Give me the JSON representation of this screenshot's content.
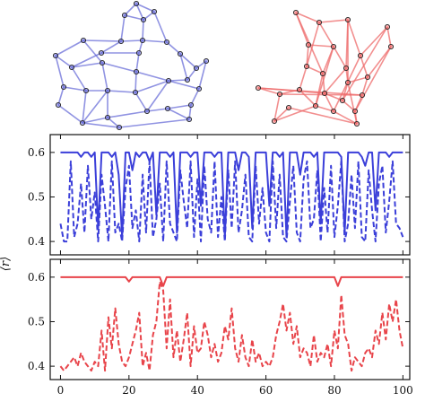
{
  "colors": {
    "blue": "#3b3fd9",
    "blue_fill": "#6b6fd8",
    "red": "#e8444a",
    "red_fill": "#ee6a6a",
    "frame": "#111111"
  },
  "networks": {
    "blue_nodes": [
      [
        152,
        4
      ],
      [
        139,
        17
      ],
      [
        172,
        13
      ],
      [
        160,
        22
      ],
      [
        135,
        46
      ],
      [
        159,
        45
      ],
      [
        186,
        47
      ],
      [
        93,
        45
      ],
      [
        113,
        59
      ],
      [
        155,
        59
      ],
      [
        201,
        60
      ],
      [
        62,
        62
      ],
      [
        80,
        75
      ],
      [
        114,
        70
      ],
      [
        152,
        80
      ],
      [
        209,
        89
      ],
      [
        219,
        76
      ],
      [
        230,
        68
      ],
      [
        71,
        97
      ],
      [
        96,
        101
      ],
      [
        120,
        101
      ],
      [
        151,
        103
      ],
      [
        188,
        90
      ],
      [
        222,
        99
      ],
      [
        213,
        117
      ],
      [
        65,
        117
      ],
      [
        92,
        137
      ],
      [
        120,
        131
      ],
      [
        164,
        124
      ],
      [
        187,
        121
      ],
      [
        211,
        133
      ],
      [
        133,
        142
      ]
    ],
    "blue_edges": [
      [
        0,
        1
      ],
      [
        0,
        2
      ],
      [
        0,
        3
      ],
      [
        1,
        3
      ],
      [
        1,
        4
      ],
      [
        2,
        3
      ],
      [
        2,
        6
      ],
      [
        3,
        5
      ],
      [
        4,
        5
      ],
      [
        4,
        7
      ],
      [
        4,
        8
      ],
      [
        5,
        6
      ],
      [
        5,
        9
      ],
      [
        6,
        10
      ],
      [
        7,
        11
      ],
      [
        7,
        13
      ],
      [
        8,
        9
      ],
      [
        8,
        12
      ],
      [
        9,
        14
      ],
      [
        10,
        15
      ],
      [
        10,
        16
      ],
      [
        11,
        12
      ],
      [
        11,
        18
      ],
      [
        12,
        13
      ],
      [
        12,
        19
      ],
      [
        13,
        14
      ],
      [
        13,
        20
      ],
      [
        14,
        21
      ],
      [
        14,
        22
      ],
      [
        15,
        16
      ],
      [
        15,
        22
      ],
      [
        16,
        17
      ],
      [
        17,
        23
      ],
      [
        18,
        19
      ],
      [
        18,
        25
      ],
      [
        19,
        20
      ],
      [
        19,
        26
      ],
      [
        20,
        21
      ],
      [
        20,
        27
      ],
      [
        21,
        22
      ],
      [
        21,
        28
      ],
      [
        22,
        23
      ],
      [
        23,
        24
      ],
      [
        24,
        29
      ],
      [
        24,
        30
      ],
      [
        25,
        26
      ],
      [
        26,
        27
      ],
      [
        27,
        28
      ],
      [
        27,
        31
      ],
      [
        28,
        29
      ],
      [
        29,
        30
      ],
      [
        30,
        31
      ],
      [
        26,
        31
      ],
      [
        22,
        28
      ],
      [
        20,
        26
      ]
    ],
    "red_nodes": [
      [
        330,
        14
      ],
      [
        356,
        25
      ],
      [
        388,
        22
      ],
      [
        432,
        30
      ],
      [
        344,
        50
      ],
      [
        372,
        52
      ],
      [
        402,
        62
      ],
      [
        436,
        52
      ],
      [
        386,
        76
      ],
      [
        342,
        74
      ],
      [
        360,
        82
      ],
      [
        410,
        86
      ],
      [
        388,
        92
      ],
      [
        288,
        98
      ],
      [
        312,
        105
      ],
      [
        334,
        100
      ],
      [
        362,
        104
      ],
      [
        382,
        112
      ],
      [
        404,
        106
      ],
      [
        306,
        135
      ],
      [
        352,
        118
      ],
      [
        372,
        124
      ],
      [
        396,
        124
      ],
      [
        398,
        138
      ],
      [
        322,
        120
      ]
    ],
    "red_edges": [
      [
        0,
        1
      ],
      [
        0,
        4
      ],
      [
        1,
        5
      ],
      [
        1,
        2
      ],
      [
        2,
        6
      ],
      [
        2,
        8
      ],
      [
        3,
        7
      ],
      [
        3,
        6
      ],
      [
        4,
        5
      ],
      [
        4,
        9
      ],
      [
        5,
        8
      ],
      [
        5,
        10
      ],
      [
        6,
        11
      ],
      [
        7,
        11
      ],
      [
        8,
        12
      ],
      [
        9,
        10
      ],
      [
        9,
        15
      ],
      [
        10,
        16
      ],
      [
        10,
        20
      ],
      [
        11,
        12
      ],
      [
        11,
        18
      ],
      [
        12,
        17
      ],
      [
        13,
        14
      ],
      [
        13,
        16
      ],
      [
        13,
        18
      ],
      [
        14,
        15
      ],
      [
        14,
        19
      ],
      [
        15,
        20
      ],
      [
        16,
        17
      ],
      [
        16,
        21
      ],
      [
        17,
        22
      ],
      [
        18,
        22
      ],
      [
        19,
        20
      ],
      [
        20,
        21
      ],
      [
        21,
        23
      ],
      [
        22,
        23
      ],
      [
        23,
        24
      ],
      [
        24,
        19
      ],
      [
        2,
        12
      ],
      [
        3,
        17
      ],
      [
        0,
        10
      ],
      [
        6,
        21
      ],
      [
        8,
        16
      ],
      [
        7,
        22
      ],
      [
        5,
        20
      ],
      [
        14,
        18
      ],
      [
        1,
        9
      ],
      [
        12,
        23
      ]
    ]
  },
  "chart_data": [
    {
      "type": "line",
      "xlabel": "",
      "ylabel": "⟨r⟩",
      "xlim": [
        -3,
        102
      ],
      "ylim": [
        0.37,
        0.64
      ],
      "yticks": [
        "0.4",
        "0.5",
        "0.6"
      ],
      "series": [
        {
          "style": "solid",
          "values": [
            0.6,
            0.6,
            0.6,
            0.6,
            0.6,
            0.6,
            0.59,
            0.6,
            0.6,
            0.59,
            0.6,
            0.43,
            0.6,
            0.6,
            0.6,
            0.59,
            0.6,
            0.55,
            0.41,
            0.6,
            0.6,
            0.56,
            0.6,
            0.59,
            0.6,
            0.6,
            0.58,
            0.6,
            0.46,
            0.6,
            0.6,
            0.6,
            0.59,
            0.6,
            0.42,
            0.6,
            0.6,
            0.6,
            0.59,
            0.6,
            0.6,
            0.48,
            0.6,
            0.6,
            0.6,
            0.59,
            0.6,
            0.6,
            0.41,
            0.6,
            0.6,
            0.6,
            0.56,
            0.6,
            0.6,
            0.59,
            0.43,
            0.6,
            0.6,
            0.6,
            0.6,
            0.48,
            0.6,
            0.6,
            0.59,
            0.6,
            0.41,
            0.6,
            0.6,
            0.6,
            0.55,
            0.6,
            0.6,
            0.6,
            0.59,
            0.6,
            0.44,
            0.6,
            0.6,
            0.6,
            0.6,
            0.6,
            0.59,
            0.42,
            0.6,
            0.6,
            0.6,
            0.6,
            0.59,
            0.57,
            0.6,
            0.6,
            0.47,
            0.6,
            0.6,
            0.6,
            0.59,
            0.6,
            0.6,
            0.6,
            0.6
          ]
        },
        {
          "style": "dashed",
          "values": [
            0.44,
            0.4,
            0.4,
            0.58,
            0.41,
            0.44,
            0.53,
            0.42,
            0.57,
            0.45,
            0.51,
            0.4,
            0.55,
            0.48,
            0.4,
            0.58,
            0.42,
            0.44,
            0.4,
            0.52,
            0.57,
            0.43,
            0.47,
            0.4,
            0.55,
            0.42,
            0.58,
            0.41,
            0.45,
            0.53,
            0.4,
            0.58,
            0.44,
            0.42,
            0.4,
            0.56,
            0.49,
            0.43,
            0.58,
            0.41,
            0.54,
            0.4,
            0.57,
            0.45,
            0.42,
            0.58,
            0.41,
            0.5,
            0.4,
            0.56,
            0.43,
            0.58,
            0.42,
            0.47,
            0.55,
            0.41,
            0.4,
            0.57,
            0.44,
            0.52,
            0.42,
            0.4,
            0.58,
            0.43,
            0.55,
            0.41,
            0.4,
            0.49,
            0.57,
            0.42,
            0.4,
            0.54,
            0.58,
            0.43,
            0.45,
            0.56,
            0.4,
            0.52,
            0.42,
            0.57,
            0.41,
            0.48,
            0.58,
            0.4,
            0.44,
            0.55,
            0.43,
            0.58,
            0.41,
            0.4,
            0.56,
            0.47,
            0.4,
            0.53,
            0.57,
            0.42,
            0.49,
            0.58,
            0.44,
            0.43,
            0.41
          ]
        }
      ]
    },
    {
      "type": "line",
      "xlabel": "",
      "ylabel": "",
      "xlim": [
        -3,
        102
      ],
      "ylim": [
        0.37,
        0.64
      ],
      "yticks": [
        "0.4",
        "0.5",
        "0.6"
      ],
      "xticks": [
        "0",
        "20",
        "40",
        "60",
        "80",
        "100"
      ],
      "series": [
        {
          "style": "solid",
          "values": [
            0.6,
            0.6,
            0.6,
            0.6,
            0.6,
            0.6,
            0.6,
            0.6,
            0.6,
            0.6,
            0.6,
            0.6,
            0.6,
            0.6,
            0.6,
            0.6,
            0.6,
            0.6,
            0.6,
            0.6,
            0.59,
            0.6,
            0.6,
            0.6,
            0.6,
            0.6,
            0.6,
            0.6,
            0.6,
            0.6,
            0.58,
            0.6,
            0.6,
            0.6,
            0.6,
            0.6,
            0.6,
            0.6,
            0.6,
            0.6,
            0.6,
            0.6,
            0.6,
            0.6,
            0.6,
            0.6,
            0.6,
            0.6,
            0.6,
            0.6,
            0.6,
            0.6,
            0.6,
            0.6,
            0.6,
            0.6,
            0.6,
            0.6,
            0.6,
            0.6,
            0.6,
            0.6,
            0.6,
            0.6,
            0.6,
            0.6,
            0.6,
            0.6,
            0.6,
            0.6,
            0.6,
            0.6,
            0.6,
            0.6,
            0.6,
            0.6,
            0.6,
            0.6,
            0.6,
            0.6,
            0.6,
            0.58,
            0.6,
            0.6,
            0.6,
            0.6,
            0.6,
            0.6,
            0.6,
            0.6,
            0.6,
            0.6,
            0.6,
            0.6,
            0.6,
            0.6,
            0.6,
            0.6,
            0.6,
            0.6,
            0.6
          ]
        },
        {
          "style": "dashed",
          "values": [
            0.4,
            0.39,
            0.4,
            0.41,
            0.42,
            0.4,
            0.43,
            0.41,
            0.4,
            0.39,
            0.41,
            0.4,
            0.48,
            0.39,
            0.51,
            0.44,
            0.53,
            0.45,
            0.41,
            0.4,
            0.42,
            0.45,
            0.48,
            0.52,
            0.4,
            0.43,
            0.39,
            0.47,
            0.5,
            0.59,
            0.57,
            0.44,
            0.55,
            0.42,
            0.48,
            0.41,
            0.46,
            0.52,
            0.4,
            0.49,
            0.43,
            0.44,
            0.5,
            0.47,
            0.42,
            0.45,
            0.41,
            0.43,
            0.49,
            0.46,
            0.53,
            0.44,
            0.41,
            0.47,
            0.42,
            0.4,
            0.46,
            0.41,
            0.43,
            0.4,
            0.41,
            0.4,
            0.42,
            0.47,
            0.5,
            0.54,
            0.48,
            0.52,
            0.45,
            0.49,
            0.42,
            0.44,
            0.43,
            0.4,
            0.47,
            0.41,
            0.43,
            0.42,
            0.45,
            0.4,
            0.48,
            0.44,
            0.56,
            0.47,
            0.45,
            0.39,
            0.42,
            0.41,
            0.4,
            0.43,
            0.44,
            0.42,
            0.48,
            0.45,
            0.52,
            0.46,
            0.54,
            0.5,
            0.55,
            0.48,
            0.44
          ]
        }
      ]
    }
  ]
}
